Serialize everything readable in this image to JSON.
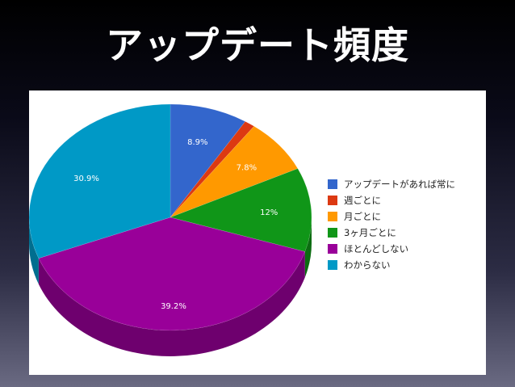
{
  "slide": {
    "title": "アップデート頻度"
  },
  "chart_data": {
    "type": "pie",
    "title": "",
    "style": "3d",
    "legend_position": "right",
    "categories": [
      "アップデートがあれば常に",
      "週ごとに",
      "月ごとに",
      "3ヶ月ごとに",
      "ほとんどしない",
      "わからない"
    ],
    "values": [
      8.9,
      1.2,
      7.8,
      12,
      39.2,
      30.9
    ],
    "data_labels": [
      "8.9%",
      "",
      "7.8%",
      "12%",
      "39.2%",
      "30.9%"
    ],
    "colors": [
      "#3366cc",
      "#dc3912",
      "#ff9900",
      "#109618",
      "#990099",
      "#0099c6"
    ]
  }
}
